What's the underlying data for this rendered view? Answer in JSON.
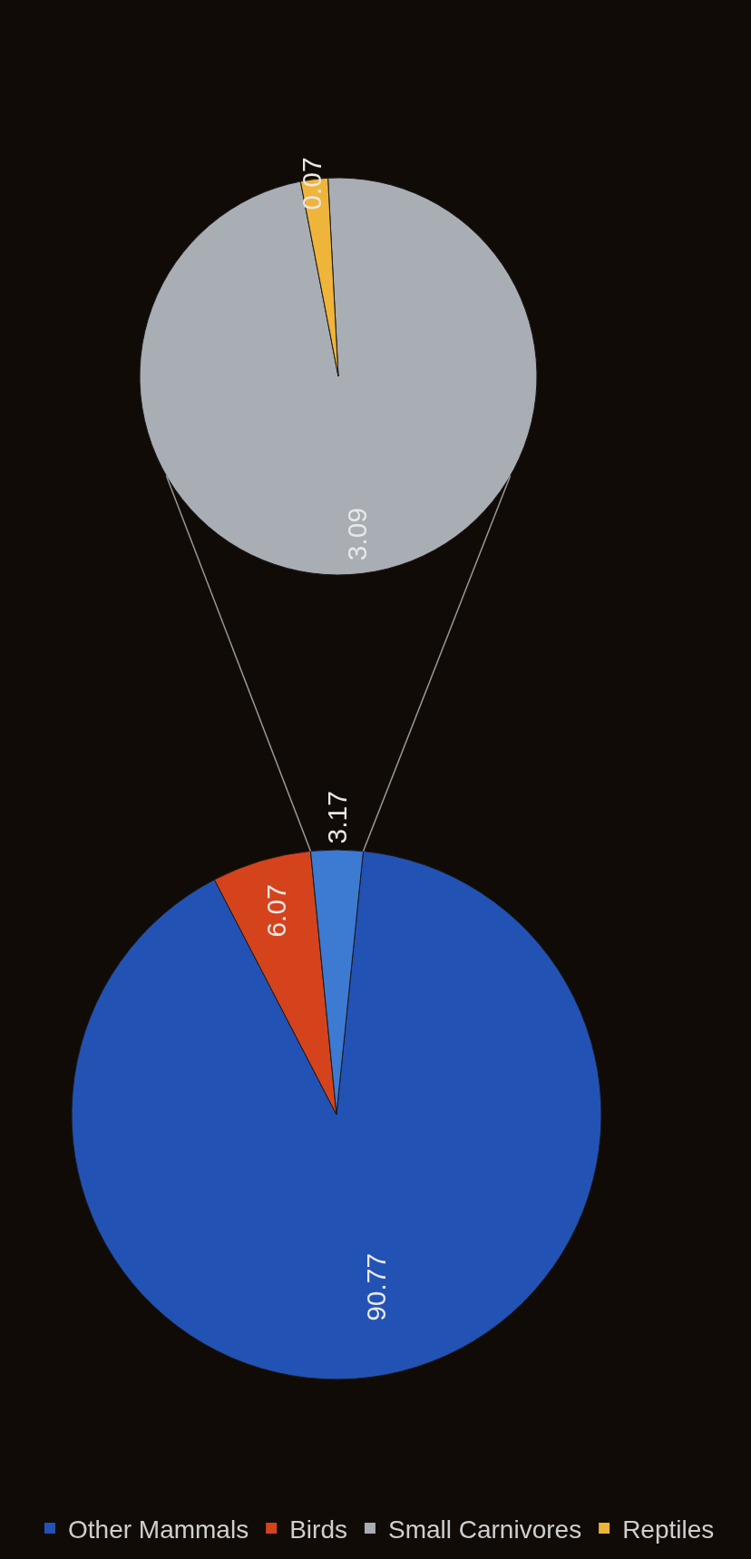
{
  "chart_data": [
    {
      "type": "pie",
      "categories": [
        "Other Mammals",
        "Birds",
        null
      ],
      "values": [
        90.77,
        6.07,
        3.17
      ],
      "colors": [
        "#2352b5",
        "#d5431c",
        "#3d7ad2"
      ],
      "data_labels": true,
      "legend": "bottom"
    },
    {
      "type": "pie",
      "categories": [
        "Small Carnivores",
        "Reptiles"
      ],
      "values": [
        3.09,
        0.07
      ],
      "colors": [
        "#a9adb4",
        "#efb43a"
      ],
      "data_labels": true,
      "legend": "bottom"
    }
  ]
}
